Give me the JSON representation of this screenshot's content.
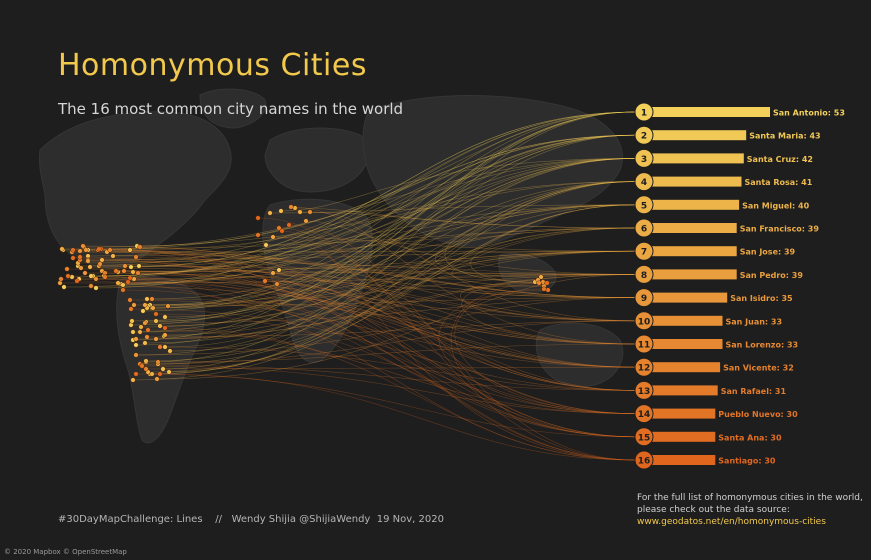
{
  "title": "Homonymous Cities",
  "subtitle": "The 16 most common city names in the world",
  "footer": {
    "hashtag": "#30DayMapChallenge: Lines",
    "separator": "//",
    "author": "Wendy Shijia",
    "handle": "@ShijiaWendy",
    "date": "19 Nov, 2020"
  },
  "source": {
    "line1": "For the full list of homonymous cities in the world,",
    "line2": "please check out the data source:",
    "link": "www.geodatos.net/en/homonymous-cities"
  },
  "copyright": "© 2020 Mapbox © OpenStreetMap",
  "colors": {
    "background": "#1e1e1e",
    "land": "#2e2e2e",
    "rank_top": "#f2d05a",
    "rank_bottom": "#e0661e",
    "title": "#f2c94c"
  },
  "chart_data": {
    "type": "bar",
    "categories": [
      "San Antonio",
      "Santa Maria",
      "Santa Cruz",
      "Santa Rosa",
      "San Miguel",
      "San Francisco",
      "San Jose",
      "San Pedro",
      "San Isidro",
      "San Juan",
      "San Lorenzo",
      "San Vicente",
      "San Rafael",
      "Pueblo Nuevo",
      "Santa Ana",
      "Santiago"
    ],
    "values": [
      53,
      43,
      42,
      41,
      40,
      39,
      39,
      39,
      35,
      33,
      33,
      32,
      31,
      30,
      30,
      30
    ],
    "ranks": [
      "1",
      "2",
      "3",
      "4",
      "5",
      "6",
      "7",
      "8",
      "9",
      "10",
      "11",
      "12",
      "13",
      "14",
      "15",
      "16"
    ],
    "labels": [
      "San Antonio: 53",
      "Santa Maria: 43",
      "Santa Cruz: 42",
      "Santa Rosa: 41",
      "San Miguel: 40",
      "San Francisco: 39",
      "San Jose: 39",
      "San Pedro: 39",
      "San Isidro: 35",
      "San Juan: 33",
      "San Lorenzo: 33",
      "San Vicente: 32",
      "San Rafael: 31",
      "Pueblo Nuevo: 30",
      "Santa Ana: 30",
      "Santiago: 30"
    ]
  }
}
